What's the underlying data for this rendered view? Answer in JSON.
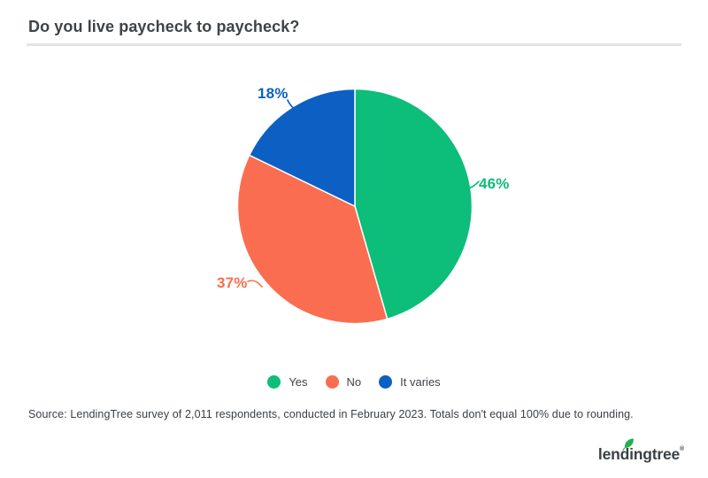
{
  "header": {
    "title": "Do you live paycheck to paycheck?"
  },
  "chart_data": {
    "type": "pie",
    "title": "Do you live paycheck to paycheck?",
    "categories": [
      "Yes",
      "No",
      "It varies"
    ],
    "values": [
      46,
      37,
      18
    ],
    "value_labels": [
      "46%",
      "37%",
      "18%"
    ],
    "colors": [
      "#0dbd7a",
      "#fb6d50",
      "#0c60c3"
    ],
    "start_angle_deg": 0,
    "direction": "clockwise",
    "legend_position": "bottom",
    "note": "Totals don't equal 100% due to rounding"
  },
  "source": {
    "text": "Source: LendingTree survey of 2,011 respondents, conducted in February 2023. Totals don't equal 100% due to rounding."
  },
  "footer": {
    "logo_text": "lendingtree",
    "logo_registered": "®",
    "logo_leaf_color": "#21b24e",
    "logo_text_color": "#3b4145"
  }
}
